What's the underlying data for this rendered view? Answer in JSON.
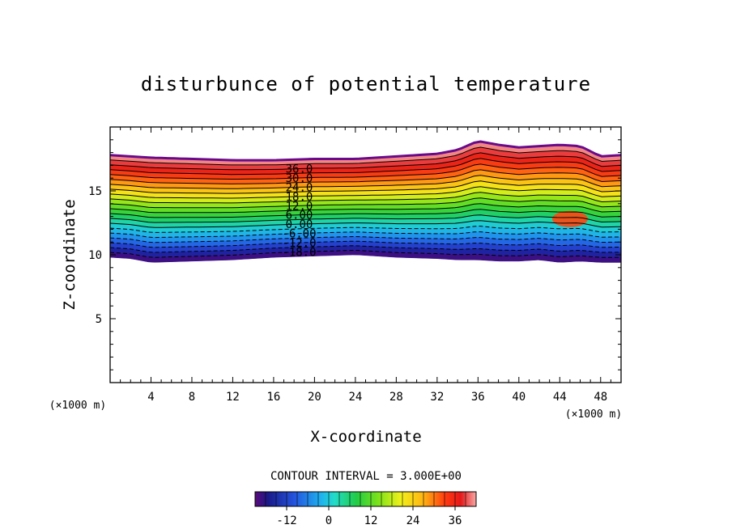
{
  "chart_data": {
    "type": "contour",
    "title": "disturbunce of potential temperature",
    "xlabel": "X-coordinate",
    "ylabel": "Z-coordinate",
    "x_unit": "(×1000 m)",
    "y_unit": "(×1000 m)",
    "xlim": [
      0,
      50
    ],
    "ylim": [
      0,
      20
    ],
    "x_ticks": [
      4,
      8,
      12,
      16,
      20,
      24,
      28,
      32,
      36,
      40,
      44,
      48
    ],
    "y_ticks": [
      5,
      10,
      15
    ],
    "contour_interval_text": "CONTOUR INTERVAL = 3.000E+00",
    "contour_labels": [
      "-18.0",
      "-12.0",
      "-6.00",
      "0.00",
      "6.00",
      "12.0",
      "18.0",
      "24.0",
      "30.0",
      "36.0"
    ],
    "colorbar": {
      "range": [
        -21,
        42
      ],
      "ticks": [
        "-12",
        "0",
        "12",
        "24",
        "36"
      ]
    },
    "field": {
      "x": [
        0,
        2,
        4,
        8,
        12,
        16,
        20,
        24,
        28,
        32,
        34,
        36,
        38,
        40,
        42,
        44,
        46,
        48,
        50
      ],
      "top": [
        17.8,
        17.7,
        17.6,
        17.5,
        17.4,
        17.4,
        17.5,
        17.5,
        17.7,
        17.9,
        18.2,
        18.9,
        18.6,
        18.4,
        18.5,
        18.6,
        18.5,
        17.7,
        17.8
      ],
      "bottom": [
        9.8,
        9.7,
        9.4,
        9.5,
        9.6,
        9.8,
        9.9,
        10.0,
        9.8,
        9.7,
        9.6,
        9.6,
        9.5,
        9.5,
        9.6,
        9.4,
        9.5,
        9.4,
        9.4
      ],
      "warm_anomaly": {
        "x": 45,
        "z": 12.8,
        "value": 30
      }
    }
  }
}
